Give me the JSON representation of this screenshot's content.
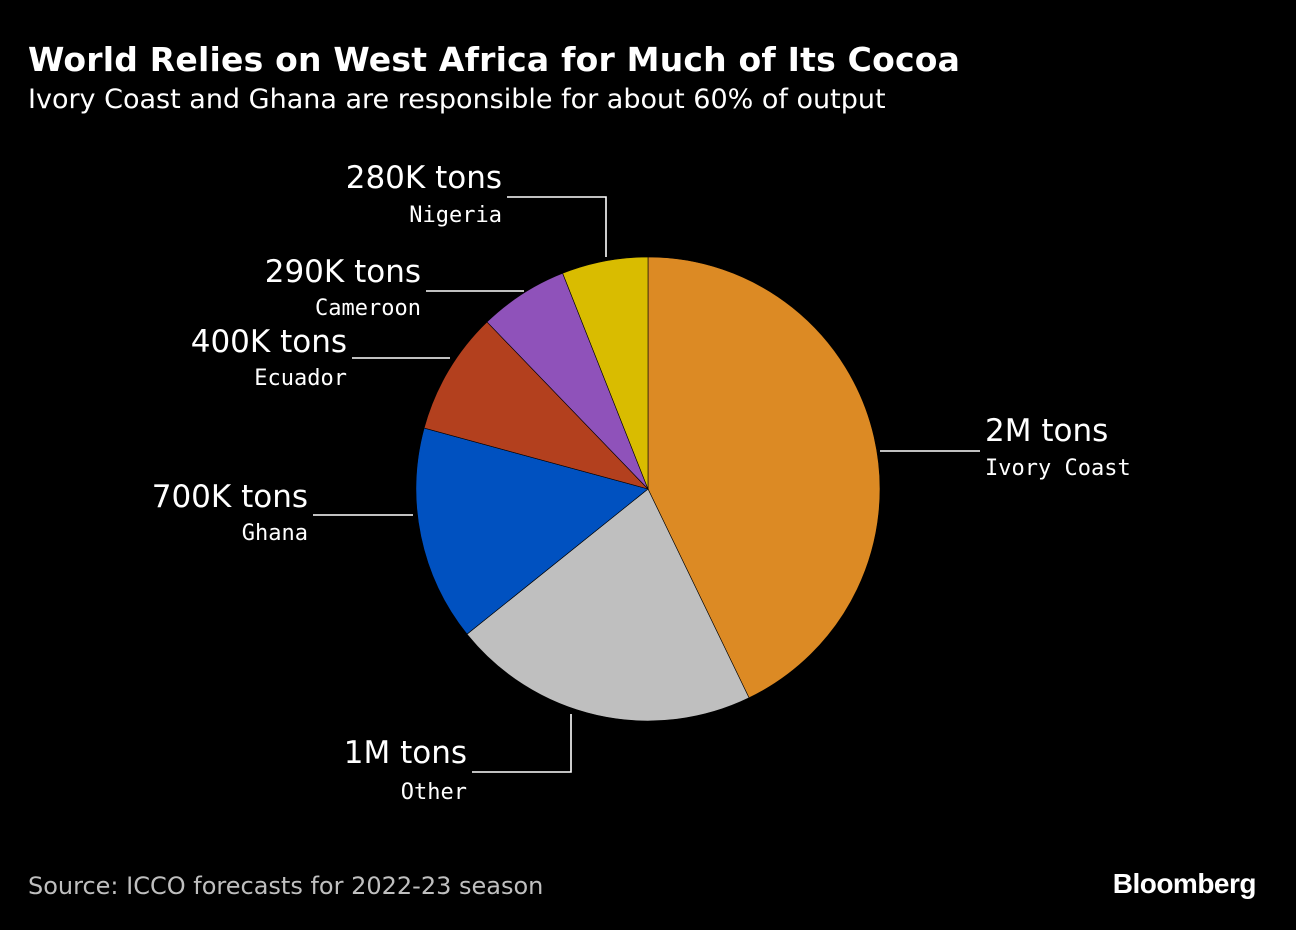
{
  "chart_data": {
    "type": "pie",
    "title": "World Relies on West Africa for Much of Its Cocoa",
    "subtitle": "Ivory Coast and Ghana are responsible for about 60% of output",
    "source": "Source: ICCO forecasts for 2022-23 season",
    "unit": "tons",
    "slices": [
      {
        "name": "Ivory Coast",
        "value": 2000000,
        "label": "2M tons",
        "color": "#dc8a24"
      },
      {
        "name": "Other",
        "value": 1000000,
        "label": "1M tons",
        "color": "#bfbfbf"
      },
      {
        "name": "Ghana",
        "value": 700000,
        "label": "700K tons",
        "color": "#0051c0"
      },
      {
        "name": "Ecuador",
        "value": 400000,
        "label": "400K tons",
        "color": "#b3401e"
      },
      {
        "name": "Cameroon",
        "value": 290000,
        "label": "290K tons",
        "color": "#8f52ba"
      },
      {
        "name": "Nigeria",
        "value": 280000,
        "label": "280K tons",
        "color": "#d9bc00"
      }
    ]
  },
  "brand": "Bloomberg"
}
